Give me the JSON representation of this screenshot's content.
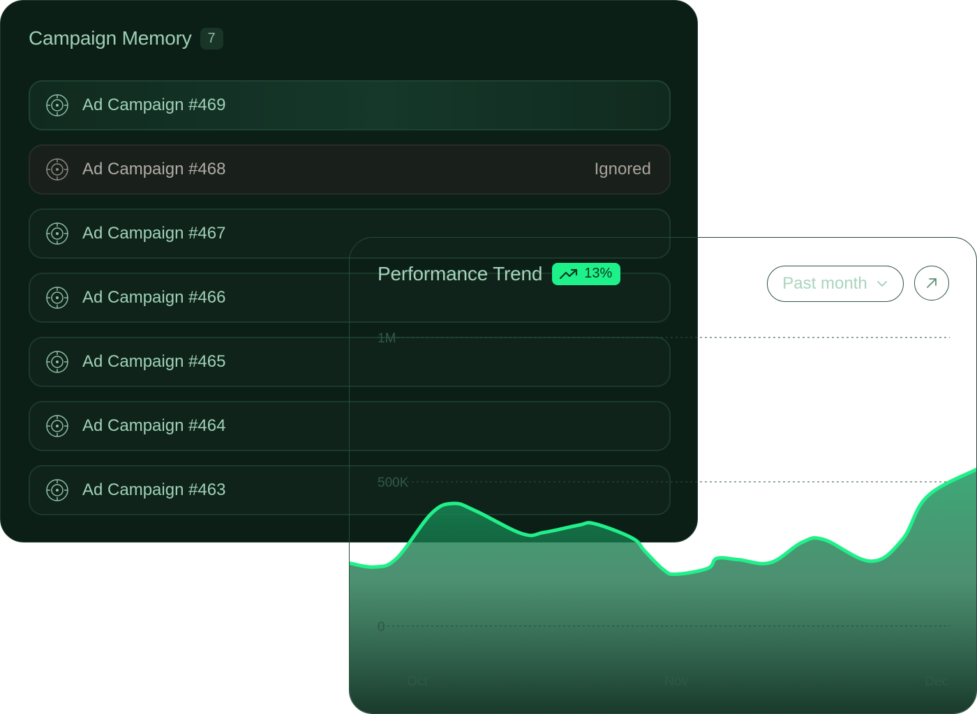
{
  "campaign_memory": {
    "title": "Campaign Memory",
    "count": "7",
    "items": [
      {
        "label": "Ad Campaign #469",
        "status": "",
        "state": "selected"
      },
      {
        "label": "Ad Campaign #468",
        "status": "Ignored",
        "state": "ignored"
      },
      {
        "label": "Ad Campaign #467",
        "status": "",
        "state": "normal"
      },
      {
        "label": "Ad Campaign #466",
        "status": "",
        "state": "normal"
      },
      {
        "label": "Ad Campaign #465",
        "status": "",
        "state": "normal"
      },
      {
        "label": "Ad Campaign #464",
        "status": "",
        "state": "normal"
      },
      {
        "label": "Ad Campaign #463",
        "status": "",
        "state": "normal"
      }
    ],
    "item_icon": "target-icon"
  },
  "performance_trend": {
    "title": "Performance Trend",
    "change_badge": "13%",
    "change_icon": "trending-up-icon",
    "period": "Past month",
    "period_icon": "chevron-down-icon",
    "expand_icon": "arrow-up-right-icon"
  },
  "chart_data": {
    "type": "area",
    "y_ticks": [
      "1M",
      "500K",
      "0"
    ],
    "x_labels": [
      "Oct",
      "Nov",
      "Dec"
    ],
    "ylim": [
      0,
      1000000
    ],
    "grid": true,
    "series": [
      {
        "points": [
          [
            0.0,
            218000
          ],
          [
            0.04,
            205000
          ],
          [
            0.075,
            235000
          ],
          [
            0.13,
            390000
          ],
          [
            0.165,
            425000
          ],
          [
            0.2,
            400000
          ],
          [
            0.275,
            320000
          ],
          [
            0.31,
            325000
          ],
          [
            0.365,
            350000
          ],
          [
            0.39,
            355000
          ],
          [
            0.45,
            305000
          ],
          [
            0.47,
            260000
          ],
          [
            0.5,
            195000
          ],
          [
            0.52,
            180000
          ],
          [
            0.57,
            200000
          ],
          [
            0.585,
            235000
          ],
          [
            0.62,
            230000
          ],
          [
            0.67,
            220000
          ],
          [
            0.72,
            290000
          ],
          [
            0.755,
            300000
          ],
          [
            0.83,
            225000
          ],
          [
            0.88,
            300000
          ],
          [
            0.92,
            450000
          ],
          [
            1.0,
            545000
          ]
        ]
      }
    ],
    "colors": {
      "line": "#21f08a",
      "fill_top": "#1aa063",
      "fill_bottom": "#0c2a1d"
    }
  }
}
